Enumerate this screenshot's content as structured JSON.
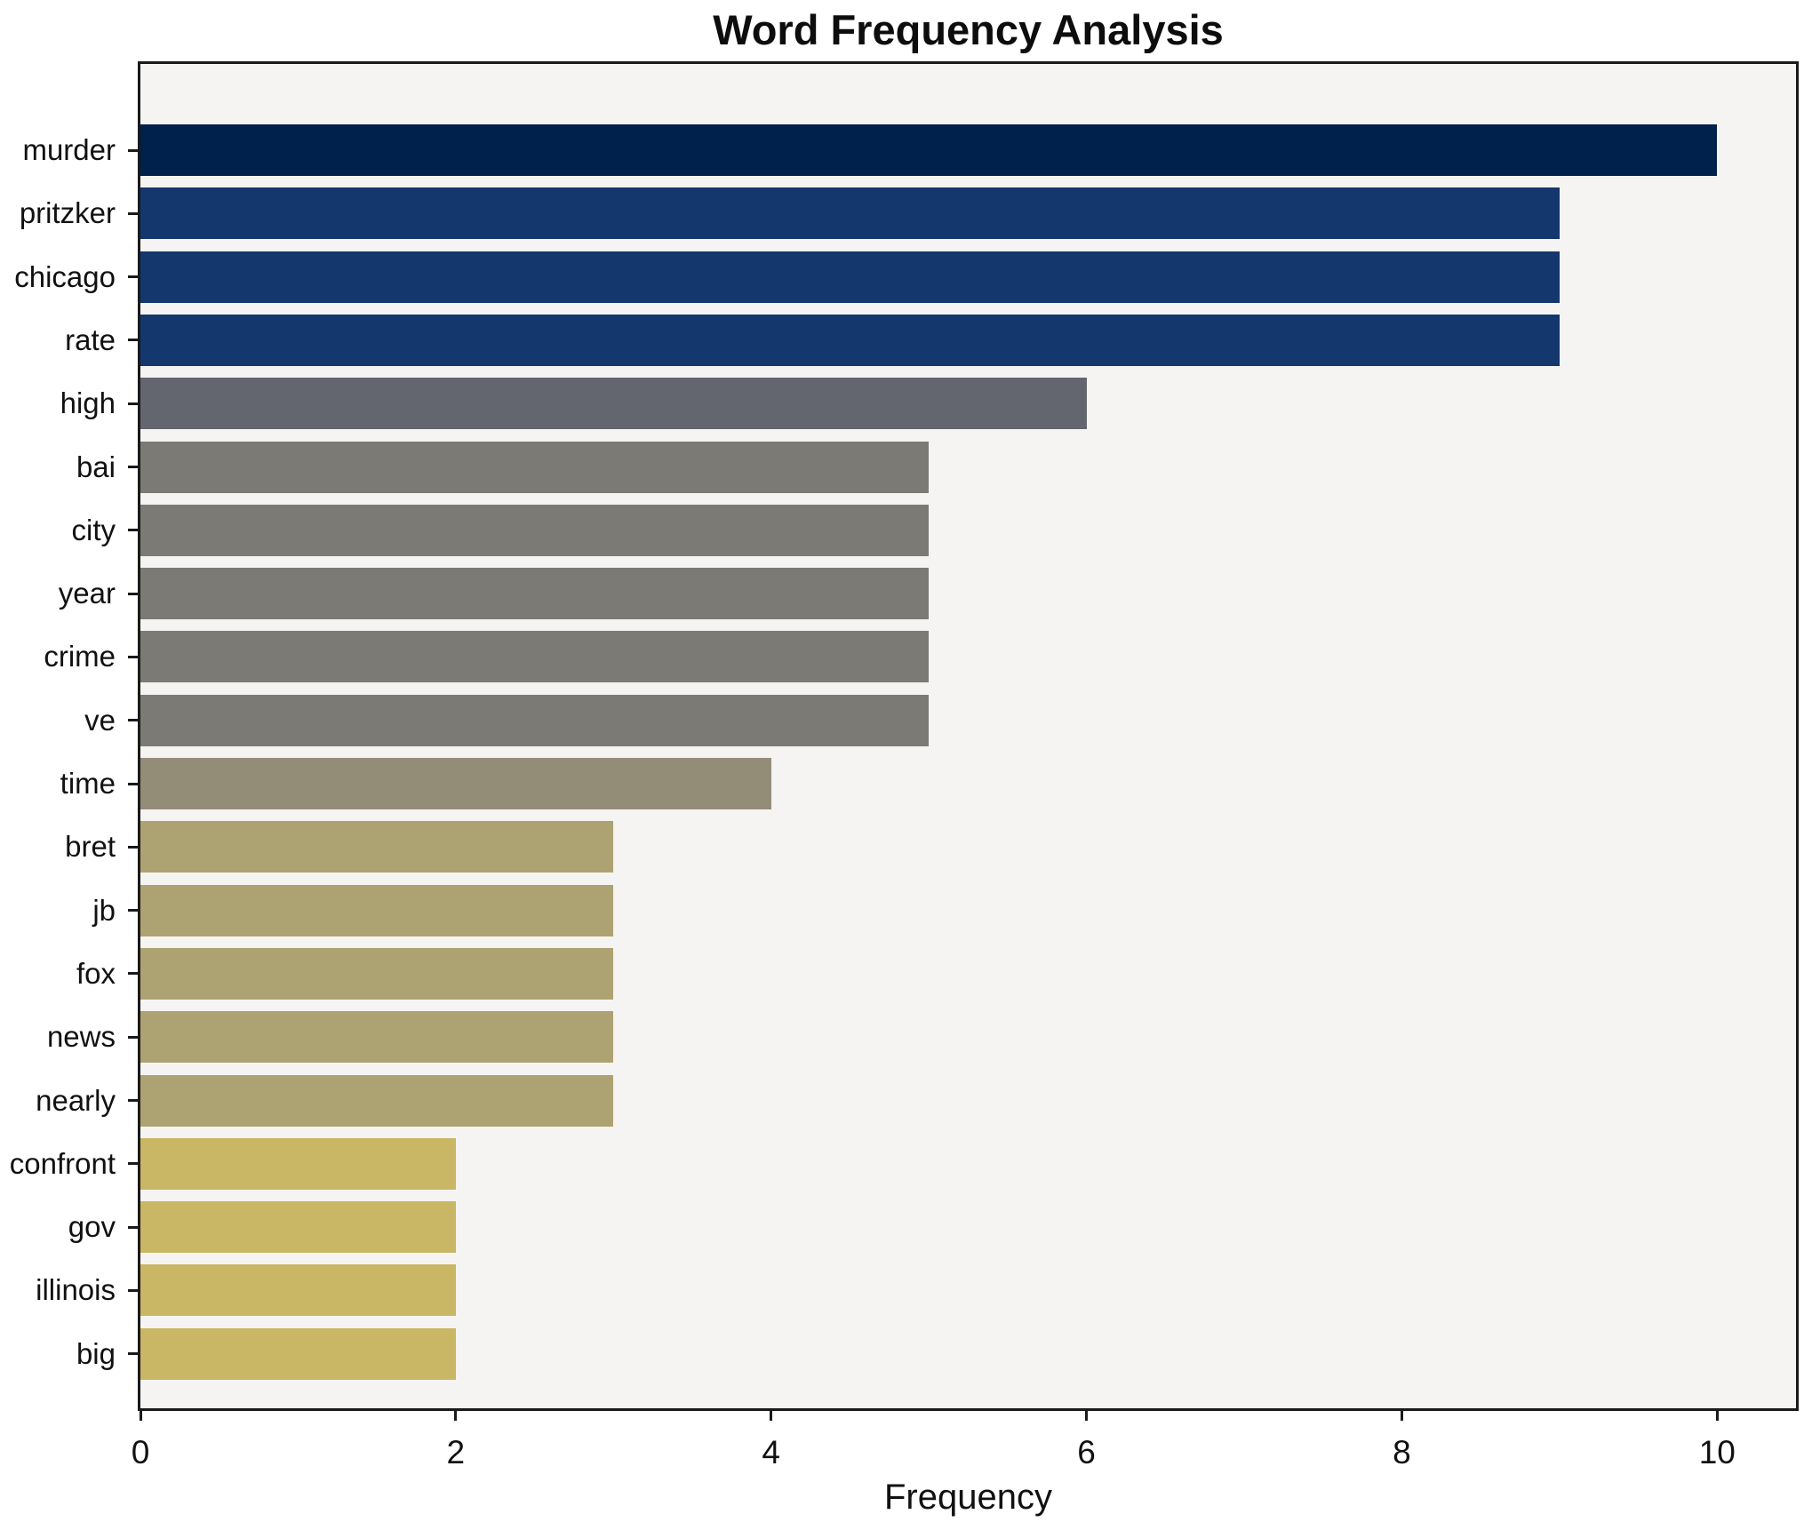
{
  "chart_data": {
    "type": "bar",
    "orientation": "horizontal",
    "title": "Word Frequency Analysis",
    "xlabel": "Frequency",
    "ylabel": "",
    "categories": [
      "murder",
      "pritzker",
      "chicago",
      "rate",
      "high",
      "bai",
      "city",
      "year",
      "crime",
      "ve",
      "time",
      "bret",
      "jb",
      "fox",
      "news",
      "nearly",
      "confront",
      "gov",
      "illinois",
      "big"
    ],
    "values": [
      10,
      9,
      9,
      9,
      6,
      5,
      5,
      5,
      5,
      5,
      4,
      3,
      3,
      3,
      3,
      3,
      2,
      2,
      2,
      2
    ],
    "bar_colors": [
      "#01214d",
      "#14386d",
      "#14386d",
      "#14386d",
      "#63666f",
      "#7b7a75",
      "#7b7a75",
      "#7b7a75",
      "#7b7a75",
      "#7b7a75",
      "#938d78",
      "#ada272",
      "#ada272",
      "#ada272",
      "#ada272",
      "#ada272",
      "#c9b765",
      "#c9b765",
      "#c9b765",
      "#c9b765"
    ],
    "xticks": [
      0,
      2,
      4,
      6,
      8,
      10
    ],
    "xlim": [
      0,
      10.5
    ],
    "grid": false,
    "legend": "none",
    "plot_background": "#f5f4f2",
    "page_background": "#ffffff",
    "axis_color": "#1a1a1a",
    "text_color": "#111111"
  }
}
